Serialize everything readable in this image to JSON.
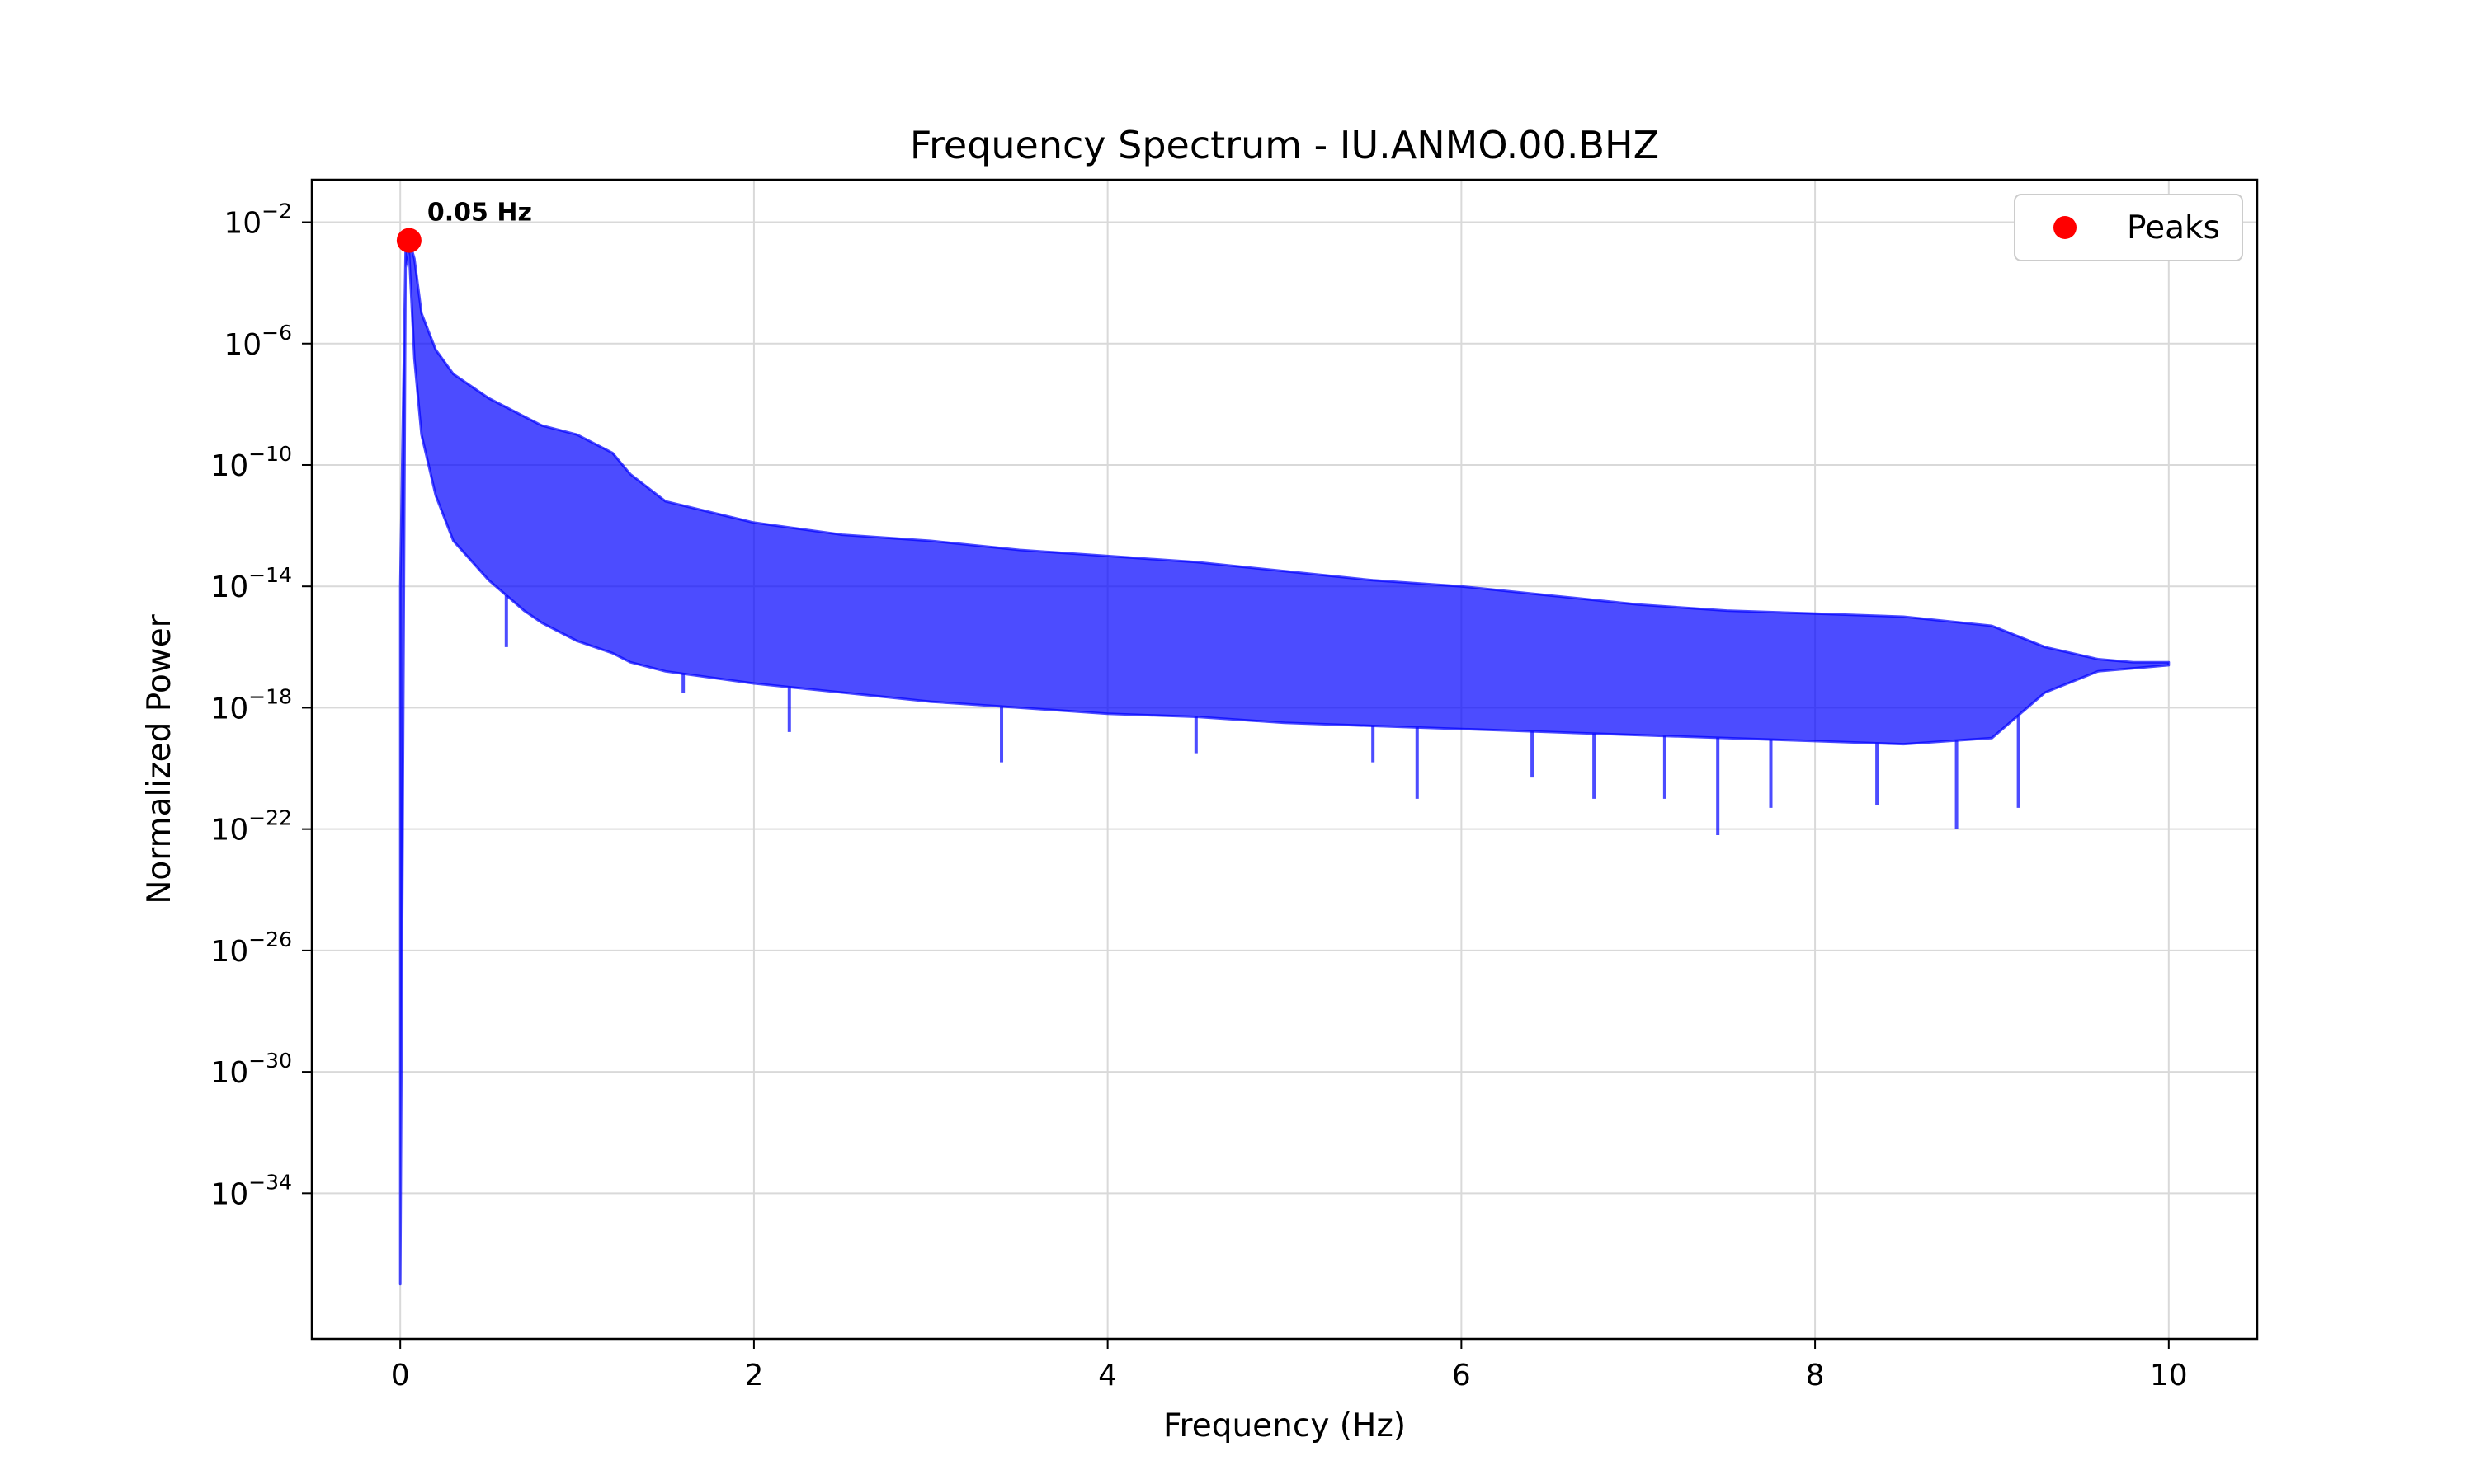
{
  "chart_data": {
    "type": "line",
    "title": "Frequency Spectrum - IU.ANMO.00.BHZ",
    "xlabel": "Frequency (Hz)",
    "ylabel": "Normalized Power",
    "xlim": [
      -0.5,
      10.5
    ],
    "ylog": true,
    "ylim_exp": [
      -38.8,
      -0.6
    ],
    "x_ticks": [
      {
        "value": 0,
        "label": "0"
      },
      {
        "value": 2,
        "label": "2"
      },
      {
        "value": 4,
        "label": "4"
      },
      {
        "value": 6,
        "label": "6"
      },
      {
        "value": 8,
        "label": "8"
      },
      {
        "value": 10,
        "label": "10"
      }
    ],
    "y_ticks": [
      {
        "exp": -2,
        "base": "10",
        "sup": "−2"
      },
      {
        "exp": -6,
        "base": "10",
        "sup": "−6"
      },
      {
        "exp": -10,
        "base": "10",
        "sup": "−10"
      },
      {
        "exp": -14,
        "base": "10",
        "sup": "−14"
      },
      {
        "exp": -18,
        "base": "10",
        "sup": "−18"
      },
      {
        "exp": -22,
        "base": "10",
        "sup": "−22"
      },
      {
        "exp": -26,
        "base": "10",
        "sup": "−26"
      },
      {
        "exp": -30,
        "base": "10",
        "sup": "−30"
      },
      {
        "exp": -34,
        "base": "10",
        "sup": "−34"
      }
    ],
    "grid": true,
    "legend": {
      "placement": "upper-right",
      "entries": [
        {
          "label": "Peaks",
          "marker": "circle",
          "color": "#ff0000"
        }
      ]
    },
    "series": [
      {
        "color": "#0000ff",
        "envelope": {
          "x": [
            0.0,
            0.03,
            0.05,
            0.08,
            0.12,
            0.2,
            0.3,
            0.5,
            0.7,
            0.8,
            1.0,
            1.2,
            1.3,
            1.5,
            2.0,
            2.5,
            3.0,
            3.5,
            4.0,
            4.5,
            5.0,
            5.5,
            6.0,
            6.5,
            7.0,
            7.5,
            8.0,
            8.5,
            9.0,
            9.3,
            9.6,
            9.8,
            10.0
          ],
          "upper_exp": [
            -14.0,
            -3.0,
            -2.6,
            -3.2,
            -5.0,
            -6.2,
            -7.0,
            -7.8,
            -8.4,
            -8.7,
            -9.0,
            -9.6,
            -10.3,
            -11.2,
            -11.9,
            -12.3,
            -12.5,
            -12.8,
            -13.0,
            -13.2,
            -13.5,
            -13.8,
            -14.0,
            -14.3,
            -14.6,
            -14.8,
            -14.9,
            -15.0,
            -15.3,
            -16.0,
            -16.4,
            -16.5,
            -16.5
          ],
          "lower_exp": [
            -37.0,
            -3.5,
            -3.0,
            -6.5,
            -9.0,
            -11.0,
            -12.5,
            -13.8,
            -14.8,
            -15.2,
            -15.8,
            -16.2,
            -16.5,
            -16.8,
            -17.2,
            -17.5,
            -17.8,
            -18.0,
            -18.2,
            -18.3,
            -18.5,
            -18.6,
            -18.7,
            -18.8,
            -18.9,
            -19.0,
            -19.1,
            -19.2,
            -19.0,
            -17.5,
            -16.8,
            -16.7,
            -16.6
          ]
        },
        "spikes": [
          {
            "x": 0.6,
            "exp": -16.0
          },
          {
            "x": 1.6,
            "exp": -17.5
          },
          {
            "x": 2.2,
            "exp": -18.8
          },
          {
            "x": 3.4,
            "exp": -19.8
          },
          {
            "x": 4.5,
            "exp": -19.5
          },
          {
            "x": 5.5,
            "exp": -19.8
          },
          {
            "x": 5.75,
            "exp": -21.0
          },
          {
            "x": 6.4,
            "exp": -20.3
          },
          {
            "x": 6.75,
            "exp": -21.0
          },
          {
            "x": 7.15,
            "exp": -21.0
          },
          {
            "x": 7.45,
            "exp": -22.2
          },
          {
            "x": 7.75,
            "exp": -21.3
          },
          {
            "x": 8.35,
            "exp": -21.2
          },
          {
            "x": 8.8,
            "exp": -22.0
          },
          {
            "x": 9.15,
            "exp": -21.3
          }
        ]
      }
    ],
    "peaks": [
      {
        "x": 0.05,
        "exp": -2.6,
        "label": "0.05 Hz"
      }
    ]
  }
}
